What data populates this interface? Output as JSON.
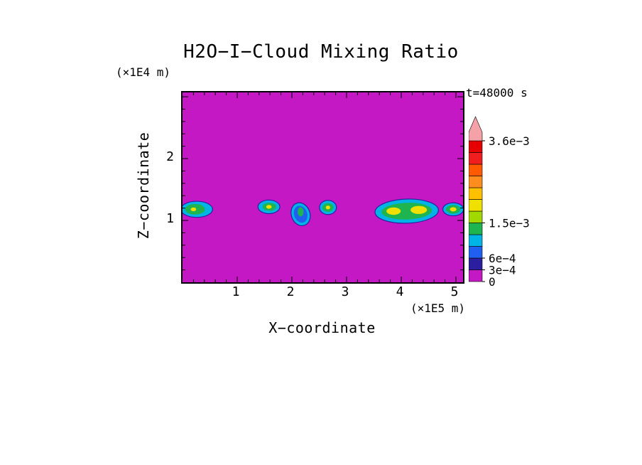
{
  "chart_data": {
    "type": "contour",
    "title": "H2O−I−Cloud Mixing Ratio",
    "time_label": "t=48000 s",
    "background_color": "#c418c4",
    "cloud_outline_color": "#2c1ea0",
    "axes": {
      "x_label": "X−coordinate",
      "x_unit": "(×1E5 m)",
      "x_ticks": [
        "1",
        "2",
        "3",
        "4",
        "5"
      ],
      "x_tick_values": [
        1,
        2,
        3,
        4,
        5
      ],
      "x_range": [
        0,
        5.13
      ],
      "x_minor_step": 0.2,
      "z_label": "Z−coordinate",
      "z_unit": "(×1E4 m)",
      "z_ticks": [
        "1",
        "2"
      ],
      "z_tick_values": [
        1,
        2
      ],
      "z_range": [
        0,
        3.07
      ],
      "z_minor_step": 0.2
    },
    "colorbar": {
      "level_step": 0.0003,
      "levels": [
        0,
        0.0003,
        0.0006,
        0.0009,
        0.0012,
        0.0015,
        0.0018,
        0.0021,
        0.0024,
        0.0027,
        0.003,
        0.0033,
        0.0036
      ],
      "colors": [
        "#c418c4",
        "#2c1ea0",
        "#2060f0",
        "#00b4e6",
        "#1eb450",
        "#a0d800",
        "#f0e000",
        "#ffc000",
        "#ff8c1e",
        "#ff5a00",
        "#f01e1e",
        "#e60000"
      ],
      "arrow_color": "#f4a2a8",
      "labels": [
        {
          "text": "3.6e−3",
          "value": 0.0036
        },
        {
          "text": "1.5e−3",
          "value": 0.0015
        },
        {
          "text": "6e−4",
          "value": 0.0006
        },
        {
          "text": "3e−4",
          "value": 0.0003
        },
        {
          "text": "0",
          "value": 0
        }
      ]
    },
    "clouds": [
      {
        "x": 0.26,
        "z": 1.18,
        "layers": [
          {
            "color": "#00b4e6",
            "rx": 0.29,
            "rz": 0.13
          },
          {
            "color": "#1eb450",
            "rx": 0.18,
            "rz": 0.085,
            "dx": -0.03
          },
          {
            "color": "#f0e000",
            "rx": 0.05,
            "rz": 0.03,
            "dx": -0.06
          }
        ]
      },
      {
        "x": 1.58,
        "z": 1.22,
        "layers": [
          {
            "color": "#00b4e6",
            "rx": 0.2,
            "rz": 0.11
          },
          {
            "color": "#1eb450",
            "rx": 0.125,
            "rz": 0.065,
            "dx": 0.01
          },
          {
            "color": "#f0e000",
            "rx": 0.05,
            "rz": 0.03
          }
        ]
      },
      {
        "x": 2.16,
        "z": 1.1,
        "layers": [
          {
            "color": "#00b4e6",
            "rx": 0.17,
            "rz": 0.19,
            "rot": -20
          },
          {
            "color": "#2060f0",
            "rx": 0.12,
            "rz": 0.14,
            "rot": -20
          },
          {
            "color": "#1eb450",
            "rx": 0.055,
            "rz": 0.075,
            "dz": 0.04
          }
        ]
      },
      {
        "x": 2.66,
        "z": 1.21,
        "layers": [
          {
            "color": "#00b4e6",
            "rx": 0.155,
            "rz": 0.115
          },
          {
            "color": "#1eb450",
            "rx": 0.1,
            "rz": 0.07
          },
          {
            "color": "#f0e000",
            "rx": 0.04,
            "rz": 0.03
          }
        ]
      },
      {
        "x": 4.1,
        "z": 1.15,
        "layers": [
          {
            "color": "#00b4e6",
            "rx": 0.58,
            "rz": 0.195,
            "rot": -2
          },
          {
            "color": "#1eb450",
            "rx": 0.46,
            "rz": 0.135,
            "rot": -2
          },
          {
            "color": "#f0e000",
            "rx": 0.13,
            "rz": 0.06,
            "dx": -0.24
          },
          {
            "color": "#f0e000",
            "rx": 0.15,
            "rz": 0.065,
            "dx": 0.22,
            "dz": 0.02
          }
        ]
      },
      {
        "x": 4.95,
        "z": 1.18,
        "layers": [
          {
            "color": "#00b4e6",
            "rx": 0.19,
            "rz": 0.105
          },
          {
            "color": "#1eb450",
            "rx": 0.13,
            "rz": 0.07
          },
          {
            "color": "#f0e000",
            "rx": 0.06,
            "rz": 0.035
          }
        ]
      }
    ]
  }
}
